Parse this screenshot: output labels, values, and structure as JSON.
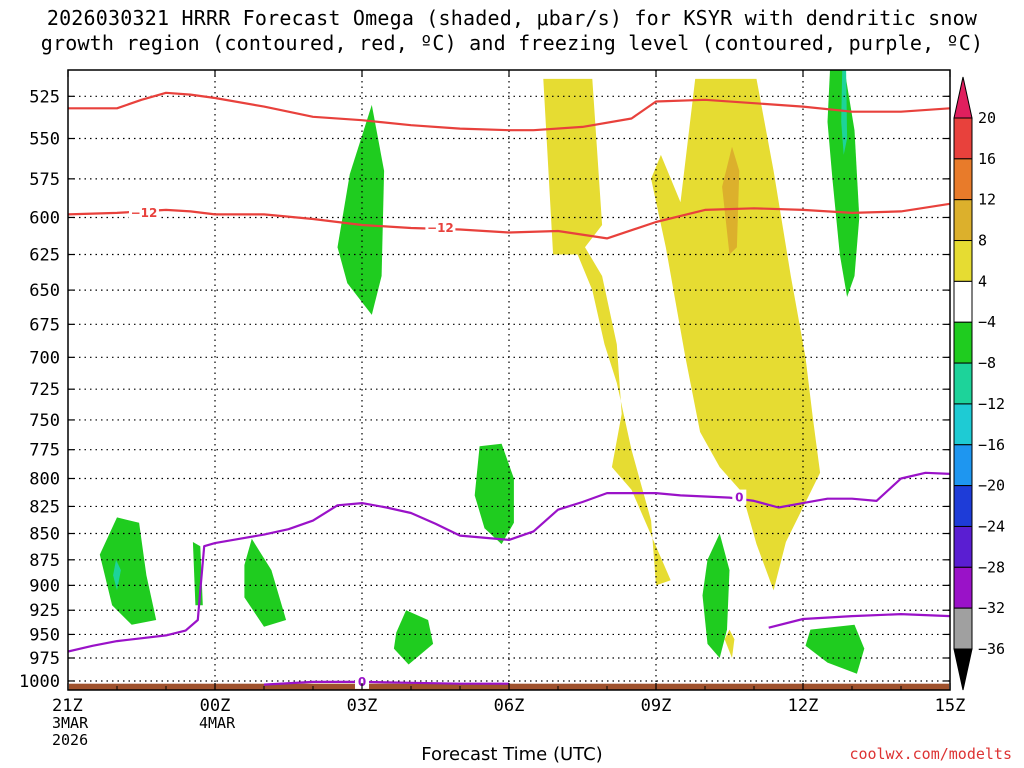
{
  "chart_data": {
    "type": "contour",
    "title_line1": "2026030321 HRRR Forecast Omega (shaded, μbar/s) for KSYR with dendritic snow",
    "title_line2": "growth region (contoured, red, ºC) and freezing level (contoured, purple, ºC)",
    "xlabel": "Forecast Time (UTC)",
    "ylabel": "",
    "credit": "coolwx.com/modelts",
    "x_ticks": [
      {
        "hour": 0,
        "label": "21Z",
        "sub1": "3MAR",
        "sub2": "2026"
      },
      {
        "hour": 3,
        "label": "00Z",
        "sub1": "4MAR",
        "sub2": ""
      },
      {
        "hour": 6,
        "label": "03Z",
        "sub1": "",
        "sub2": ""
      },
      {
        "hour": 9,
        "label": "06Z",
        "sub1": "",
        "sub2": ""
      },
      {
        "hour": 12,
        "label": "09Z",
        "sub1": "",
        "sub2": ""
      },
      {
        "hour": 15,
        "label": "12Z",
        "sub1": "",
        "sub2": ""
      },
      {
        "hour": 18,
        "label": "15Z",
        "sub1": "",
        "sub2": ""
      }
    ],
    "xlim": [
      0,
      18
    ],
    "y_ticks": [
      525,
      550,
      575,
      600,
      625,
      650,
      675,
      700,
      725,
      750,
      775,
      800,
      825,
      850,
      875,
      900,
      925,
      950,
      975,
      1000
    ],
    "ylim": [
      510,
      1010
    ],
    "y_scale": "log-pressure",
    "colorbar": {
      "labels": [
        "20",
        "16",
        "12",
        "8",
        "4",
        "−4",
        "−8",
        "−12",
        "−16",
        "−20",
        "−24",
        "−28",
        "−32",
        "−36"
      ],
      "colors": [
        "#e01f5e",
        "#e8413c",
        "#e87b2a",
        "#dcb02c",
        "#e6dc32",
        "#ffffff",
        "#1fcc1f",
        "#1dd39a",
        "#1ecbd4",
        "#1e96f0",
        "#1e3cd8",
        "#5a1ed2",
        "#9a12c8",
        "#a0a0a0",
        "#000000"
      ]
    },
    "dgz_contour_label": "-12",
    "dgz_upper": [
      [
        0,
        532
      ],
      [
        0.5,
        532
      ],
      [
        1,
        532
      ],
      [
        1.5,
        527
      ],
      [
        2,
        523
      ],
      [
        2.5,
        524
      ],
      [
        3,
        526
      ],
      [
        4,
        531
      ],
      [
        5,
        537
      ],
      [
        6,
        539
      ],
      [
        7,
        542
      ],
      [
        8,
        544
      ],
      [
        9,
        545
      ],
      [
        9.5,
        545
      ],
      [
        10.5,
        543
      ],
      [
        11.5,
        538
      ],
      [
        12,
        528
      ],
      [
        13,
        527
      ],
      [
        14,
        529
      ],
      [
        15,
        531
      ],
      [
        16,
        534
      ],
      [
        17,
        534
      ],
      [
        18,
        532
      ]
    ],
    "dgz_lower": [
      [
        0,
        598
      ],
      [
        1,
        597
      ],
      [
        2,
        595
      ],
      [
        2.5,
        596
      ],
      [
        3,
        598
      ],
      [
        4,
        598
      ],
      [
        5,
        601
      ],
      [
        6,
        605
      ],
      [
        7,
        607
      ],
      [
        8,
        608
      ],
      [
        9,
        610
      ],
      [
        10,
        609
      ],
      [
        11,
        614
      ],
      [
        12,
        603
      ],
      [
        13,
        595
      ],
      [
        14,
        594
      ],
      [
        15,
        595
      ],
      [
        16,
        597
      ],
      [
        17,
        596
      ],
      [
        18,
        591
      ]
    ],
    "freezing_contour_label": "0",
    "freezing_level": [
      [
        0,
        968
      ],
      [
        0.5,
        962
      ],
      [
        1,
        957
      ],
      [
        2,
        951
      ],
      [
        2.4,
        946
      ],
      [
        2.65,
        935
      ],
      [
        2.7,
        905
      ],
      [
        2.78,
        862
      ],
      [
        3,
        859
      ],
      [
        3.5,
        855
      ],
      [
        4,
        851
      ],
      [
        4.5,
        846
      ],
      [
        5,
        838
      ],
      [
        5.5,
        824
      ],
      [
        6,
        822
      ],
      [
        6.5,
        826
      ],
      [
        7,
        831
      ],
      [
        7.5,
        841
      ],
      [
        8,
        852
      ],
      [
        9,
        856
      ],
      [
        9.5,
        848
      ],
      [
        10,
        828
      ],
      [
        10.5,
        821
      ],
      [
        11,
        813
      ],
      [
        12,
        813
      ],
      [
        12.5,
        815
      ],
      [
        13,
        816
      ],
      [
        13.5,
        817
      ],
      [
        14,
        820
      ],
      [
        14.5,
        826
      ],
      [
        15,
        822
      ],
      [
        15.5,
        818
      ],
      [
        16,
        818
      ],
      [
        16.5,
        820
      ],
      [
        17,
        800
      ],
      [
        17.5,
        795
      ],
      [
        18,
        796
      ]
    ],
    "freezing_near_surface": [
      [
        4,
        1004
      ],
      [
        5,
        1001
      ],
      [
        6,
        1001
      ],
      [
        7,
        1002
      ],
      [
        8,
        1003
      ],
      [
        9,
        1003
      ]
    ],
    "freezing_low_right": [
      [
        14.3,
        943
      ],
      [
        15,
        934
      ],
      [
        16,
        931
      ],
      [
        17,
        929
      ],
      [
        18,
        931
      ]
    ],
    "omega_regions": [
      {
        "level": "4",
        "points": [
          [
            9.7,
            515
          ],
          [
            10.7,
            515
          ],
          [
            10.9,
            605
          ],
          [
            10.55,
            620
          ],
          [
            10.9,
            640
          ],
          [
            11.2,
            690
          ],
          [
            11.3,
            745
          ],
          [
            11.1,
            790
          ],
          [
            11.5,
            810
          ],
          [
            12.3,
            895
          ],
          [
            12.0,
            900
          ],
          [
            11.9,
            838
          ],
          [
            11.5,
            775
          ],
          [
            11.2,
            720
          ],
          [
            10.95,
            690
          ],
          [
            10.7,
            650
          ],
          [
            10.4,
            625
          ],
          [
            9.9,
            625
          ]
        ]
      },
      {
        "level": "4",
        "points": [
          [
            12.8,
            515
          ],
          [
            14.05,
            515
          ],
          [
            14.4,
            570
          ],
          [
            14.75,
            640
          ],
          [
            15.05,
            700
          ],
          [
            15.2,
            748
          ],
          [
            15.35,
            795
          ],
          [
            14.9,
            835
          ],
          [
            14.65,
            858
          ],
          [
            14.4,
            905
          ],
          [
            14.05,
            860
          ],
          [
            13.75,
            812
          ],
          [
            13.3,
            790
          ],
          [
            12.9,
            760
          ],
          [
            12.6,
            700
          ],
          [
            12.2,
            620
          ],
          [
            11.9,
            575
          ],
          [
            12.1,
            560
          ],
          [
            12.5,
            590
          ]
        ]
      },
      {
        "level": "8",
        "points": [
          [
            13.55,
            555
          ],
          [
            13.7,
            570
          ],
          [
            13.65,
            620
          ],
          [
            13.5,
            625
          ],
          [
            13.35,
            580
          ]
        ]
      },
      {
        "level": "4",
        "points": [
          [
            13.5,
            945
          ],
          [
            13.6,
            955
          ],
          [
            13.55,
            975
          ],
          [
            13.4,
            955
          ]
        ]
      },
      {
        "level": "-4",
        "points": [
          [
            6.2,
            530
          ],
          [
            6.45,
            570
          ],
          [
            6.4,
            640
          ],
          [
            6.2,
            668
          ],
          [
            5.7,
            645
          ],
          [
            5.5,
            620
          ],
          [
            5.75,
            572
          ]
        ]
      },
      {
        "level": "-4",
        "points": [
          [
            15.55,
            510
          ],
          [
            15.85,
            510
          ],
          [
            16.05,
            545
          ],
          [
            16.15,
            600
          ],
          [
            16.05,
            640
          ],
          [
            15.9,
            655
          ],
          [
            15.75,
            625
          ],
          [
            15.6,
            575
          ],
          [
            15.5,
            540
          ]
        ]
      },
      {
        "level": "-8",
        "points": [
          [
            15.8,
            510
          ],
          [
            15.88,
            510
          ],
          [
            15.9,
            550
          ],
          [
            15.83,
            560
          ],
          [
            15.78,
            540
          ]
        ]
      },
      {
        "level": "-4",
        "points": [
          [
            8.4,
            772
          ],
          [
            8.85,
            770
          ],
          [
            9.1,
            800
          ],
          [
            9.1,
            840
          ],
          [
            8.85,
            860
          ],
          [
            8.5,
            845
          ],
          [
            8.3,
            815
          ]
        ]
      },
      {
        "level": "-4",
        "points": [
          [
            1.0,
            835
          ],
          [
            1.45,
            840
          ],
          [
            1.6,
            890
          ],
          [
            1.8,
            935
          ],
          [
            1.3,
            940
          ],
          [
            0.9,
            920
          ],
          [
            0.65,
            870
          ]
        ]
      },
      {
        "level": "-8",
        "points": [
          [
            0.98,
            875
          ],
          [
            1.08,
            885
          ],
          [
            1.0,
            905
          ],
          [
            0.92,
            890
          ]
        ]
      },
      {
        "level": "-4",
        "points": [
          [
            2.55,
            858
          ],
          [
            2.7,
            862
          ],
          [
            2.75,
            920
          ],
          [
            2.6,
            920
          ]
        ]
      },
      {
        "level": "-4",
        "points": [
          [
            3.75,
            855
          ],
          [
            4.15,
            885
          ],
          [
            4.45,
            935
          ],
          [
            4.0,
            942
          ],
          [
            3.6,
            912
          ],
          [
            3.6,
            880
          ]
        ]
      },
      {
        "level": "-4",
        "points": [
          [
            6.9,
            925
          ],
          [
            7.35,
            935
          ],
          [
            7.45,
            960
          ],
          [
            6.95,
            982
          ],
          [
            6.65,
            965
          ],
          [
            6.7,
            948
          ]
        ]
      },
      {
        "level": "-4",
        "points": [
          [
            13.3,
            850
          ],
          [
            13.5,
            885
          ],
          [
            13.45,
            945
          ],
          [
            13.3,
            975
          ],
          [
            13.05,
            960
          ],
          [
            12.95,
            910
          ],
          [
            13.05,
            875
          ]
        ]
      },
      {
        "level": "-4",
        "points": [
          [
            15.15,
            945
          ],
          [
            16.05,
            940
          ],
          [
            16.25,
            965
          ],
          [
            16.1,
            992
          ],
          [
            15.5,
            980
          ],
          [
            15.05,
            962
          ]
        ]
      }
    ]
  }
}
